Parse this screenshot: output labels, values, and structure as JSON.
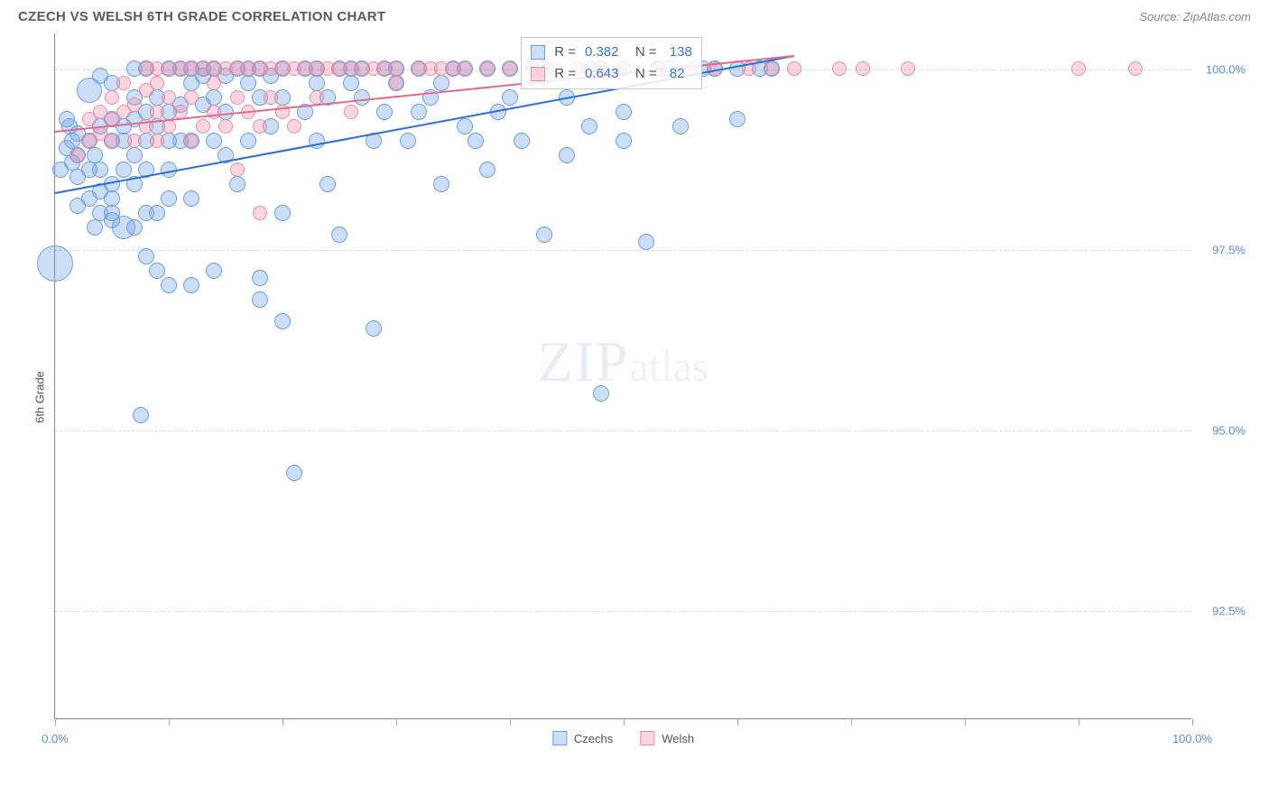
{
  "header": {
    "title": "CZECH VS WELSH 6TH GRADE CORRELATION CHART",
    "source": "Source: ZipAtlas.com"
  },
  "chart": {
    "type": "scatter",
    "ylabel": "6th Grade",
    "xlim": [
      0,
      100
    ],
    "ylim": [
      91.0,
      100.5
    ],
    "ytick_positions": [
      92.5,
      95.0,
      97.5,
      100.0
    ],
    "ytick_labels": [
      "92.5%",
      "95.0%",
      "97.5%",
      "100.0%"
    ],
    "xtick_positions": [
      0,
      10,
      20,
      30,
      40,
      50,
      60,
      70,
      80,
      90,
      100
    ],
    "xtick_labels_shown": {
      "0": "0.0%",
      "100": "100.0%"
    },
    "grid_color": "#d8d8d8",
    "axis_color": "#888888",
    "tick_label_color": "#5a8fd6",
    "background_color": "#ffffff",
    "watermark": {
      "part1": "ZIP",
      "part2": "atlas"
    },
    "series": [
      {
        "id": "czechs",
        "label": "Czechs",
        "fill": "rgba(110,160,225,0.35)",
        "stroke": "#6fa0e1",
        "trend": {
          "x1": 0,
          "y1": 98.3,
          "x2": 65,
          "y2": 100.2,
          "color": "#2a6fd6"
        },
        "base_radius": 9,
        "points": [
          [
            0,
            97.3,
            20
          ],
          [
            0.5,
            98.6
          ],
          [
            1,
            98.9
          ],
          [
            1,
            99.3
          ],
          [
            1.3,
            99.2
          ],
          [
            1.5,
            98.7
          ],
          [
            1.5,
            99.0
          ],
          [
            2,
            98.8
          ],
          [
            2,
            99.1
          ],
          [
            2,
            98.1
          ],
          [
            2,
            98.5
          ],
          [
            3,
            98.2
          ],
          [
            3,
            98.6
          ],
          [
            3,
            99.0
          ],
          [
            3,
            99.7,
            14
          ],
          [
            3.5,
            98.8
          ],
          [
            3.5,
            97.8
          ],
          [
            4,
            98.0
          ],
          [
            4,
            99.9
          ],
          [
            4,
            99.2
          ],
          [
            4,
            98.6
          ],
          [
            4,
            98.3
          ],
          [
            5,
            98.0
          ],
          [
            5,
            97.9
          ],
          [
            5,
            98.4
          ],
          [
            5,
            99.0
          ],
          [
            5,
            99.3
          ],
          [
            5,
            98.2
          ],
          [
            5,
            99.8
          ],
          [
            6,
            99.0
          ],
          [
            6,
            97.8,
            13
          ],
          [
            6,
            98.6
          ],
          [
            6,
            99.2
          ],
          [
            7,
            97.8
          ],
          [
            7,
            98.4
          ],
          [
            7,
            98.8
          ],
          [
            7,
            99.3
          ],
          [
            7,
            99.6
          ],
          [
            7,
            100.0
          ],
          [
            7.5,
            95.2
          ],
          [
            8,
            97.4
          ],
          [
            8,
            98.0
          ],
          [
            8,
            98.6
          ],
          [
            8,
            99.0
          ],
          [
            8,
            99.4
          ],
          [
            8,
            100.0
          ],
          [
            9,
            97.2
          ],
          [
            9,
            98.0
          ],
          [
            9,
            99.2
          ],
          [
            9,
            99.6
          ],
          [
            10,
            97.0
          ],
          [
            10,
            98.2
          ],
          [
            10,
            98.6
          ],
          [
            10,
            99.0
          ],
          [
            10,
            99.4
          ],
          [
            10,
            100.0
          ],
          [
            11,
            99.5
          ],
          [
            11,
            99.0
          ],
          [
            11,
            100.0
          ],
          [
            12,
            97.0
          ],
          [
            12,
            98.2
          ],
          [
            12,
            99.0
          ],
          [
            12,
            99.8
          ],
          [
            12,
            100.0
          ],
          [
            13,
            99.5
          ],
          [
            13,
            99.9
          ],
          [
            13,
            100.0
          ],
          [
            14,
            97.2
          ],
          [
            14,
            99.0
          ],
          [
            14,
            99.6
          ],
          [
            14,
            100.0
          ],
          [
            15,
            98.8
          ],
          [
            15,
            99.4
          ],
          [
            15,
            99.9
          ],
          [
            16,
            98.4
          ],
          [
            16,
            100.0
          ],
          [
            17,
            99.0
          ],
          [
            17,
            99.8
          ],
          [
            17,
            100.0
          ],
          [
            18,
            97.1
          ],
          [
            18,
            96.8
          ],
          [
            18,
            99.6
          ],
          [
            18,
            100.0
          ],
          [
            19,
            99.2
          ],
          [
            19,
            99.9
          ],
          [
            20,
            96.5
          ],
          [
            20,
            98.0
          ],
          [
            20,
            99.6
          ],
          [
            20,
            100.0
          ],
          [
            21,
            94.4
          ],
          [
            22,
            99.4
          ],
          [
            22,
            100.0
          ],
          [
            23,
            99.0
          ],
          [
            23,
            99.8
          ],
          [
            23,
            100.0
          ],
          [
            24,
            98.4
          ],
          [
            24,
            99.6
          ],
          [
            25,
            100.0
          ],
          [
            25,
            97.7
          ],
          [
            26,
            99.8
          ],
          [
            26,
            100.0
          ],
          [
            27,
            99.6
          ],
          [
            27,
            100.0
          ],
          [
            28,
            96.4
          ],
          [
            28,
            99.0
          ],
          [
            29,
            99.4
          ],
          [
            29,
            100.0
          ],
          [
            30,
            99.8
          ],
          [
            30,
            100.0
          ],
          [
            31,
            99.0
          ],
          [
            32,
            99.4
          ],
          [
            32,
            100.0
          ],
          [
            33,
            99.6
          ],
          [
            34,
            98.4
          ],
          [
            34,
            99.8
          ],
          [
            35,
            100.0
          ],
          [
            36,
            99.2
          ],
          [
            36,
            100.0
          ],
          [
            37,
            99.0
          ],
          [
            38,
            98.6
          ],
          [
            38,
            100.0
          ],
          [
            39,
            99.4
          ],
          [
            40,
            99.6
          ],
          [
            40,
            100.0
          ],
          [
            41,
            99.0
          ],
          [
            42,
            100.0
          ],
          [
            43,
            97.7
          ],
          [
            43,
            100.0
          ],
          [
            45,
            98.8
          ],
          [
            45,
            99.6
          ],
          [
            47,
            99.2
          ],
          [
            47,
            100.0
          ],
          [
            48,
            95.5
          ],
          [
            48,
            100.0
          ],
          [
            50,
            99.0
          ],
          [
            50,
            99.4
          ],
          [
            50,
            100.0
          ],
          [
            52,
            97.6
          ],
          [
            53,
            100.0
          ],
          [
            54,
            100.0
          ],
          [
            55,
            99.2
          ],
          [
            57,
            100.0
          ],
          [
            58,
            100.0
          ],
          [
            60,
            100.0
          ],
          [
            62,
            100.0
          ],
          [
            63,
            100.0
          ],
          [
            60,
            99.3
          ]
        ]
      },
      {
        "id": "welsh",
        "label": "Welsh",
        "fill": "rgba(240,140,165,0.35)",
        "stroke": "#e88ca5",
        "trend": {
          "x1": 0,
          "y1": 99.15,
          "x2": 65,
          "y2": 100.2,
          "color": "#e26a8c"
        },
        "base_radius": 8,
        "points": [
          [
            2,
            98.8
          ],
          [
            3,
            99.0
          ],
          [
            3,
            99.3
          ],
          [
            4,
            99.1
          ],
          [
            4,
            99.4
          ],
          [
            5,
            99.0
          ],
          [
            5,
            99.3
          ],
          [
            5,
            99.6
          ],
          [
            6,
            99.4
          ],
          [
            6,
            99.8
          ],
          [
            7,
            99.0
          ],
          [
            7,
            99.5
          ],
          [
            8,
            99.2
          ],
          [
            8,
            99.7
          ],
          [
            8,
            100.0
          ],
          [
            9,
            99.0
          ],
          [
            9,
            99.4
          ],
          [
            9,
            99.8
          ],
          [
            9,
            100.0
          ],
          [
            10,
            99.2
          ],
          [
            10,
            99.6
          ],
          [
            10,
            100.0
          ],
          [
            11,
            99.4
          ],
          [
            11,
            100.0
          ],
          [
            12,
            99.0
          ],
          [
            12,
            99.6
          ],
          [
            12,
            100.0
          ],
          [
            13,
            99.2
          ],
          [
            13,
            100.0
          ],
          [
            14,
            99.4
          ],
          [
            14,
            99.8
          ],
          [
            14,
            100.0
          ],
          [
            15,
            99.2
          ],
          [
            15,
            100.0
          ],
          [
            16,
            99.6
          ],
          [
            16,
            98.6
          ],
          [
            16,
            100.0
          ],
          [
            17,
            99.4
          ],
          [
            17,
            100.0
          ],
          [
            18,
            99.2
          ],
          [
            18,
            98.0
          ],
          [
            18,
            100.0
          ],
          [
            19,
            99.6
          ],
          [
            19,
            100.0
          ],
          [
            20,
            99.4
          ],
          [
            20,
            100.0
          ],
          [
            21,
            99.2
          ],
          [
            21,
            100.0
          ],
          [
            22,
            100.0
          ],
          [
            23,
            99.6
          ],
          [
            23,
            100.0
          ],
          [
            24,
            100.0
          ],
          [
            25,
            100.0
          ],
          [
            26,
            99.4
          ],
          [
            26,
            100.0
          ],
          [
            27,
            100.0
          ],
          [
            28,
            100.0
          ],
          [
            29,
            100.0
          ],
          [
            30,
            99.8
          ],
          [
            30,
            100.0
          ],
          [
            32,
            100.0
          ],
          [
            33,
            100.0
          ],
          [
            34,
            100.0
          ],
          [
            35,
            100.0
          ],
          [
            36,
            100.0
          ],
          [
            38,
            100.0
          ],
          [
            40,
            100.0
          ],
          [
            42,
            100.0
          ],
          [
            44,
            100.0
          ],
          [
            46,
            100.0
          ],
          [
            48,
            100.0
          ],
          [
            50,
            100.0
          ],
          [
            53,
            100.0
          ],
          [
            56,
            100.0
          ],
          [
            58,
            100.0
          ],
          [
            61,
            100.0
          ],
          [
            63,
            100.0
          ],
          [
            65,
            100.0
          ],
          [
            69,
            100.0
          ],
          [
            71,
            100.0
          ],
          [
            75,
            100.0
          ],
          [
            90,
            100.0
          ],
          [
            95,
            100.0
          ]
        ]
      }
    ],
    "stats_box": {
      "left_pct": 41,
      "rows": [
        {
          "series": "czechs",
          "r": "0.382",
          "n": "138"
        },
        {
          "series": "welsh",
          "r": "0.643",
          "n": "82"
        }
      ]
    },
    "legend_items": [
      {
        "series": "czechs",
        "label": "Czechs"
      },
      {
        "series": "welsh",
        "label": "Welsh"
      }
    ]
  }
}
